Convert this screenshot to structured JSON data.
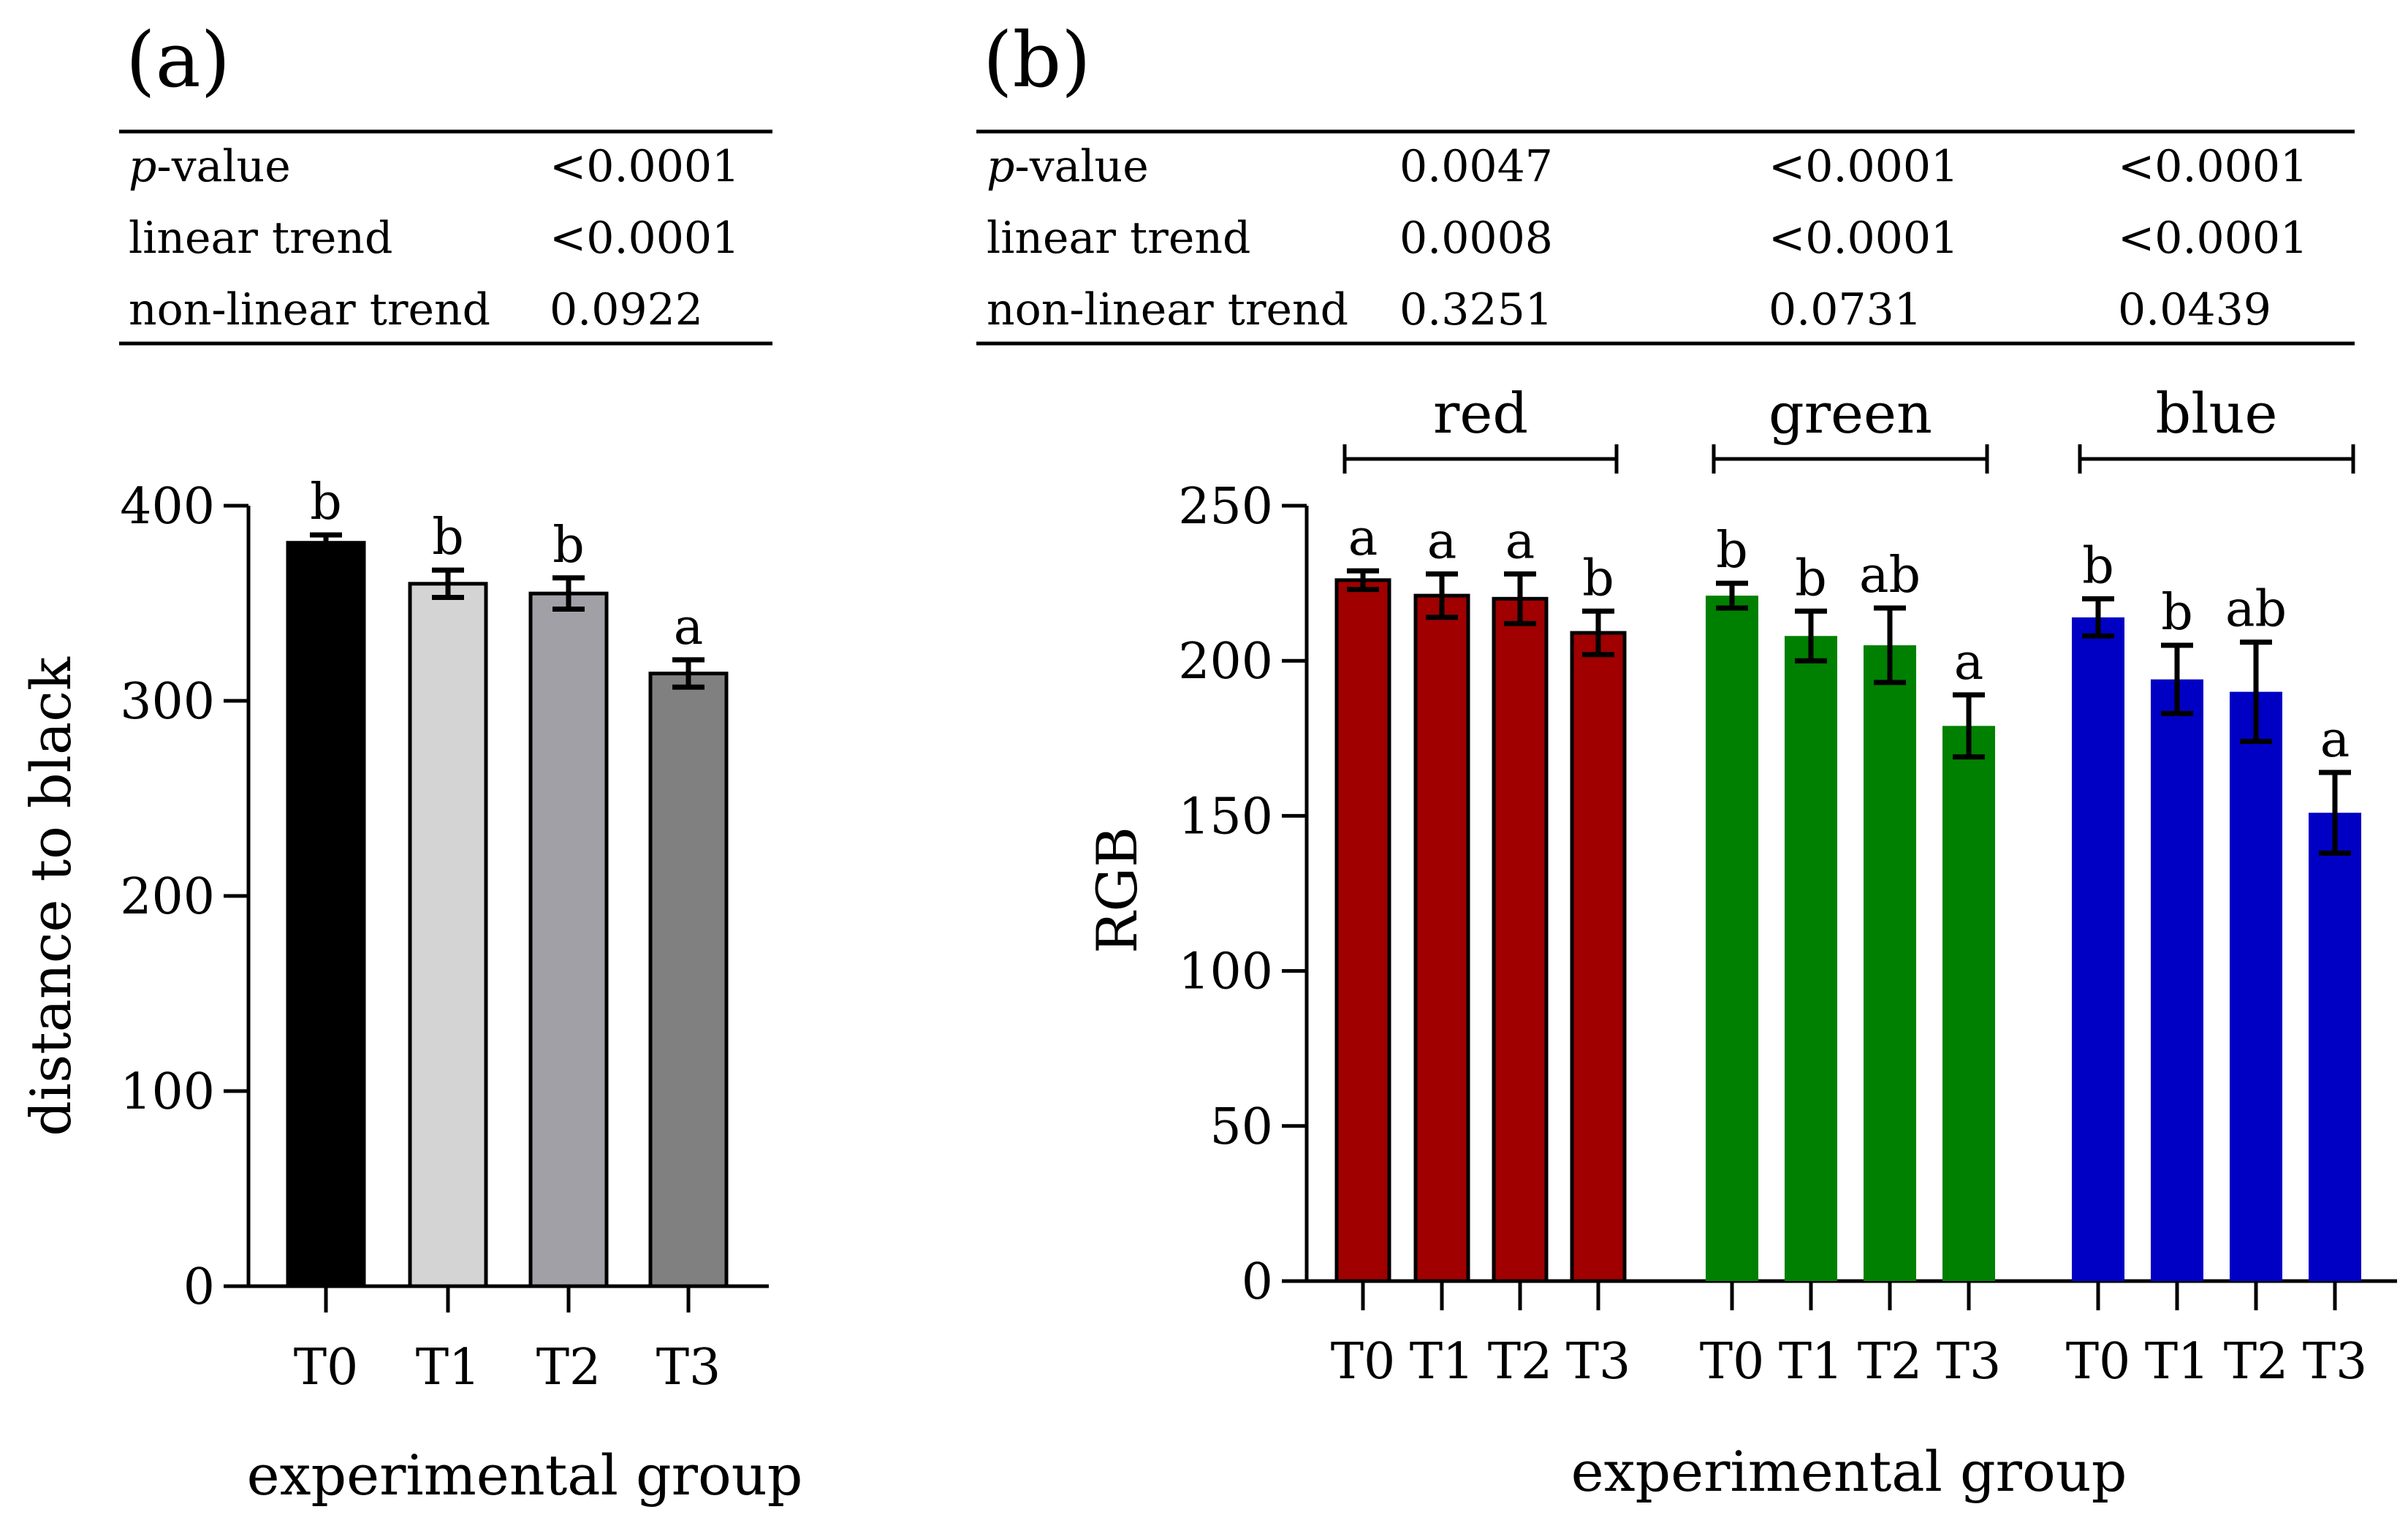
{
  "chart_data": [
    {
      "type": "bar",
      "panel_label": "(a)",
      "stats_table": {
        "rows": [
          {
            "label_prefix": "p",
            "label_suffix": "-value",
            "values": [
              "<0.0001"
            ]
          },
          {
            "label_prefix": "",
            "label_suffix": "linear trend",
            "values": [
              "<0.0001"
            ]
          },
          {
            "label_prefix": "",
            "label_suffix": "non-linear trend",
            "values": [
              "0.0922"
            ]
          }
        ]
      },
      "categories": [
        "T0",
        "T1",
        "T2",
        "T3"
      ],
      "values": [
        381,
        360,
        355,
        314
      ],
      "errors": [
        4,
        7,
        8,
        7
      ],
      "significance": [
        "b",
        "b",
        "b",
        "a"
      ],
      "colors": [
        "#000000",
        "#d4d4d4",
        "#a0a0a6",
        "#808080"
      ],
      "xlabel": "experimental group",
      "ylabel": "distance to black",
      "ylim": [
        0,
        400
      ],
      "yticks": [
        0,
        100,
        200,
        300,
        400
      ]
    },
    {
      "type": "bar",
      "panel_label": "(b)",
      "stats_table": {
        "rows": [
          {
            "label_prefix": "p",
            "label_suffix": "-value",
            "values": [
              "0.0047",
              "<0.0001",
              "<0.0001"
            ]
          },
          {
            "label_prefix": "",
            "label_suffix": "linear trend",
            "values": [
              "0.0008",
              "<0.0001",
              "<0.0001"
            ]
          },
          {
            "label_prefix": "",
            "label_suffix": "non-linear trend",
            "values": [
              "0.3251",
              "0.0731",
              "0.0439"
            ]
          }
        ]
      },
      "categories": [
        "T0",
        "T1",
        "T2",
        "T3"
      ],
      "series": [
        {
          "name": "red",
          "color": "#a00000",
          "values": [
            226,
            221,
            220,
            209
          ],
          "errors": [
            3,
            7,
            8,
            7
          ],
          "significance": [
            "a",
            "a",
            "a",
            "b"
          ]
        },
        {
          "name": "green",
          "color": "#008000",
          "values": [
            221,
            208,
            205,
            179
          ],
          "errors": [
            4,
            8,
            12,
            10
          ],
          "significance": [
            "b",
            "b",
            "ab",
            "a"
          ]
        },
        {
          "name": "blue",
          "color": "#0000c4",
          "values": [
            214,
            194,
            190,
            151
          ],
          "errors": [
            6,
            11,
            16,
            13
          ],
          "significance": [
            "b",
            "b",
            "ab",
            "a"
          ]
        }
      ],
      "xlabel": "experimental group",
      "ylabel": "RGB",
      "ylim": [
        0,
        250
      ],
      "yticks": [
        0,
        50,
        100,
        150,
        200,
        250
      ]
    }
  ]
}
